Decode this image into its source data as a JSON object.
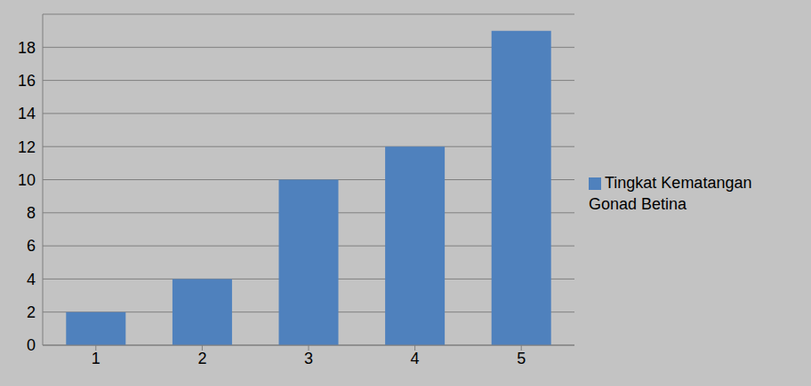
{
  "chart_data": {
    "type": "bar",
    "categories": [
      "1",
      "2",
      "3",
      "4",
      "5"
    ],
    "series": [
      {
        "name": "Tingkat Kematangan Gonad Betina",
        "color": "#4f81bd",
        "values": [
          2,
          4,
          10,
          12,
          19
        ]
      }
    ],
    "ylim": [
      0,
      20
    ],
    "yticks": [
      0,
      2,
      4,
      6,
      8,
      10,
      12,
      14,
      16,
      18
    ],
    "grid": true,
    "legend": "right"
  }
}
